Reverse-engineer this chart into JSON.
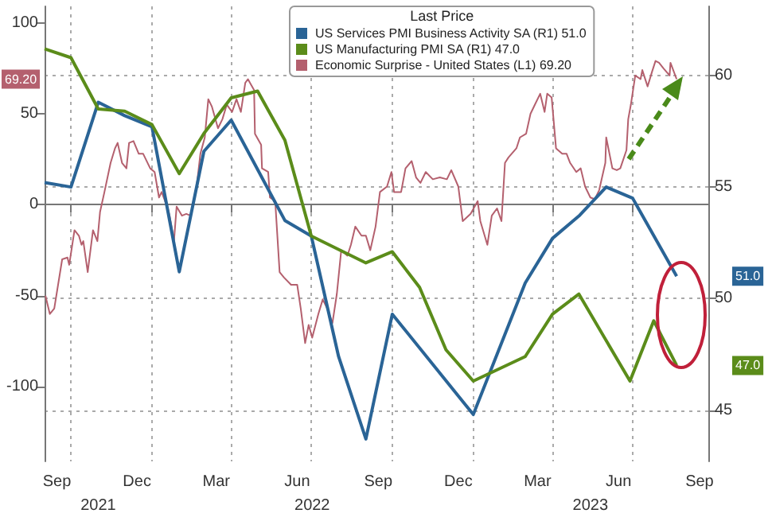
{
  "chart_data": {
    "type": "line",
    "legend_title": "Last Price",
    "legend": "top right",
    "grid": true,
    "xlim": [
      "2021-09-01",
      "2023-09-25"
    ],
    "xticks": [
      {
        "value": "2021-09-15",
        "label": "Sep"
      },
      {
        "value": "2021-10-01",
        "label": null
      },
      {
        "value": "2021-12-15",
        "label": "Dec"
      },
      {
        "value": "2022-01-01",
        "label": null
      },
      {
        "value": "2022-03-15",
        "label": "Mar"
      },
      {
        "value": "2022-04-01",
        "label": null
      },
      {
        "value": "2022-06-15",
        "label": "Jun"
      },
      {
        "value": "2022-07-01",
        "label": null
      },
      {
        "value": "2022-09-15",
        "label": "Sep"
      },
      {
        "value": "2022-10-01",
        "label": null
      },
      {
        "value": "2022-12-15",
        "label": "Dec"
      },
      {
        "value": "2023-01-01",
        "label": null
      },
      {
        "value": "2023-03-15",
        "label": "Mar"
      },
      {
        "value": "2023-04-01",
        "label": null
      },
      {
        "value": "2023-06-15",
        "label": "Jun"
      },
      {
        "value": "2023-07-01",
        "label": null
      },
      {
        "value": "2023-09-15",
        "label": "Sep"
      }
    ],
    "x2lim": [
      "2021-09-01",
      "2023-09-25"
    ],
    "x2ticks": [
      {
        "value": "2021-11-01",
        "label": "2021"
      },
      {
        "value": "2022-07-02",
        "label": "2022"
      },
      {
        "value": "2023-05-14",
        "label": "2023"
      }
    ],
    "ylim": [
      -141,
      109
    ],
    "yticks": [
      -100,
      -50,
      0,
      50,
      100
    ],
    "y2lim": [
      42.7,
      63.1
    ],
    "y2ticks": [
      45,
      50,
      55,
      60
    ],
    "annotations": [
      "51.0",
      "47.0",
      "69.20"
    ],
    "series": [
      {
        "name": "US Services PMI Business Activity SA (R1) 51.0",
        "color": "#2a6496",
        "axis": "y2",
        "x": [
          "2021-09",
          "2021-10",
          "2021-11",
          "2021-12",
          "2022-01",
          "2022-02",
          "2022-03",
          "2022-04",
          "2022-06",
          "2022-07",
          "2022-08",
          "2022-09",
          "2022-10",
          "2023-01",
          "2023-03",
          "2023-04",
          "2023-05",
          "2023-06",
          "2023-07",
          "2023-08-20"
        ],
        "values": [
          55.2,
          55.0,
          58.8,
          58.2,
          57.7,
          51.2,
          56.6,
          58.0,
          53.5,
          52.8,
          47.4,
          43.7,
          49.3,
          44.8,
          50.7,
          52.7,
          53.7,
          55.0,
          54.5,
          51.0
        ]
      },
      {
        "name": "US Manufacturing PMI SA (R1) 47.0",
        "color": "#5b8c1a",
        "axis": "y2",
        "x": [
          "2021-09",
          "2021-10",
          "2021-11",
          "2021-12",
          "2022-01",
          "2022-02",
          "2022-03",
          "2022-04",
          "2022-05",
          "2022-06",
          "2022-07",
          "2022-09",
          "2022-10",
          "2022-11",
          "2022-12",
          "2023-01",
          "2023-03",
          "2023-04",
          "2023-05",
          "2023-06-28",
          "2023-07-25",
          "2023-08-20"
        ],
        "values": [
          61.2,
          60.8,
          58.5,
          58.4,
          57.8,
          55.6,
          57.4,
          59.0,
          59.3,
          57.1,
          52.8,
          51.6,
          52.1,
          50.5,
          47.7,
          46.3,
          47.4,
          49.3,
          50.2,
          46.3,
          49.0,
          47.0
        ]
      },
      {
        "name": "Economic Surprise - United States (L1) 69.20",
        "color": "#b4606e",
        "axis": "y",
        "x": [
          "2021-09-02",
          "2021-09-07",
          "2021-09-12",
          "2021-09-21",
          "2021-09-27",
          "2021-09-29",
          "2021-10-05",
          "2021-10-10",
          "2021-10-13",
          "2021-10-15",
          "2021-10-20",
          "2021-10-26",
          "2021-10-31",
          "2021-11-03",
          "2021-11-08",
          "2021-11-15",
          "2021-11-20",
          "2021-11-23",
          "2021-11-28",
          "2021-12-03",
          "2021-12-06",
          "2021-12-11",
          "2021-12-17",
          "2021-12-22",
          "2021-12-30",
          "2022-01-04",
          "2022-01-09",
          "2022-01-12",
          "2022-01-19",
          "2022-01-21",
          "2022-01-26",
          "2022-01-29",
          "2022-02-04",
          "2022-02-09",
          "2022-02-14",
          "2022-02-21",
          "2022-02-25",
          "2022-03-02",
          "2022-03-06",
          "2022-03-10",
          "2022-03-17",
          "2022-03-22",
          "2022-03-27",
          "2022-04-02",
          "2022-04-07",
          "2022-04-12",
          "2022-04-17",
          "2022-04-20",
          "2022-04-27",
          "2022-04-28",
          "2022-05-05",
          "2022-05-06",
          "2022-05-13",
          "2022-05-15",
          "2022-05-21",
          "2022-05-26",
          "2022-05-31",
          "2022-06-08",
          "2022-06-15",
          "2022-06-19",
          "2022-06-24",
          "2022-06-28",
          "2022-07-02",
          "2022-07-09",
          "2022-07-14",
          "2022-07-19",
          "2022-07-25",
          "2022-07-30",
          "2022-08-04",
          "2022-08-11",
          "2022-08-15",
          "2022-08-20",
          "2022-08-27",
          "2022-09-01",
          "2022-09-06",
          "2022-09-12",
          "2022-09-17",
          "2022-09-25",
          "2022-09-30",
          "2022-10-03",
          "2022-10-11",
          "2022-10-16",
          "2022-10-23",
          "2022-10-28",
          "2022-11-02",
          "2022-11-08",
          "2022-11-16",
          "2022-11-24",
          "2022-12-02",
          "2022-12-07",
          "2022-12-15",
          "2022-12-20",
          "2022-12-29",
          "2023-01-06",
          "2023-01-09",
          "2023-01-17",
          "2023-01-22",
          "2023-01-28",
          "2023-02-02",
          "2023-02-06",
          "2023-02-10",
          "2023-02-19",
          "2023-02-23",
          "2023-03-02",
          "2023-03-07",
          "2023-03-12",
          "2023-03-18",
          "2023-03-23",
          "2023-03-26",
          "2023-03-31",
          "2023-04-05",
          "2023-04-12",
          "2023-04-17",
          "2023-04-21",
          "2023-04-28",
          "2023-05-03",
          "2023-05-08",
          "2023-05-14",
          "2023-05-19",
          "2023-05-24",
          "2023-05-31",
          "2023-06-01",
          "2023-06-08",
          "2023-06-13",
          "2023-06-17",
          "2023-06-24",
          "2023-06-26",
          "2023-06-29",
          "2023-07-04",
          "2023-07-10",
          "2023-07-12",
          "2023-07-18",
          "2023-07-23",
          "2023-07-27",
          "2023-07-31",
          "2023-08-05",
          "2023-08-12",
          "2023-08-13",
          "2023-08-20"
        ],
        "values": [
          -50,
          -60,
          -57,
          -30,
          -29,
          -33,
          -14,
          -17,
          -22,
          -20,
          -37,
          -14,
          -20,
          -4,
          7,
          23,
          31,
          34,
          23,
          20,
          34,
          35,
          28,
          28,
          20,
          18,
          4,
          7,
          -2,
          -6,
          -20,
          -1,
          -6,
          -5,
          -6,
          11,
          28,
          37,
          58,
          54,
          42,
          47,
          55,
          51,
          58,
          51,
          67,
          69,
          63,
          39,
          33,
          20,
          18,
          4,
          2,
          -37,
          -40,
          -44,
          -44,
          -57,
          -76,
          -66,
          -73,
          -60,
          -52,
          -57,
          -65,
          -49,
          -25,
          -28,
          -22,
          -12,
          -17,
          -17,
          -25,
          -12,
          7,
          10,
          18,
          7,
          7,
          20,
          24,
          15,
          12,
          18,
          14,
          15,
          14,
          19,
          10,
          -9,
          -5,
          2,
          -9,
          -22,
          -6,
          -2,
          -9,
          23,
          26,
          31,
          37,
          39,
          50,
          55,
          61,
          51,
          61,
          59,
          31,
          28,
          28,
          23,
          18,
          20,
          10,
          4,
          3,
          8,
          23,
          37,
          20,
          19,
          20,
          30,
          47,
          55,
          71,
          69,
          74,
          65,
          73,
          79,
          78,
          75,
          71,
          78,
          69
        ]
      }
    ]
  }
}
